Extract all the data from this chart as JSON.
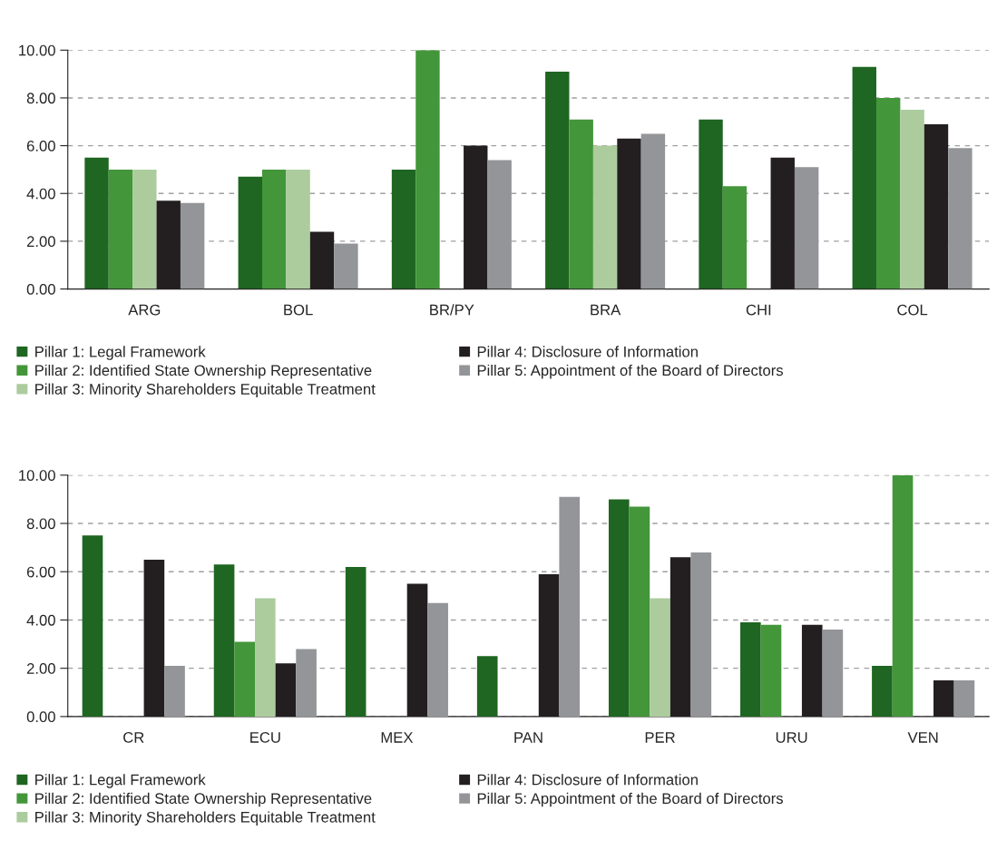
{
  "chart_data": [
    {
      "type": "bar",
      "categories": [
        "ARG",
        "BOL",
        "BR/PY",
        "BRA",
        "CHI",
        "COL"
      ],
      "ylim": [
        0,
        10
      ],
      "yticks": [
        {
          "value": 0,
          "label": "0.00"
        },
        {
          "value": 2,
          "label": "2.00"
        },
        {
          "value": 4,
          "label": "4.00"
        },
        {
          "value": 6,
          "label": "6.00"
        },
        {
          "value": 8,
          "label": "8.00"
        },
        {
          "value": 10,
          "label": "10.00"
        }
      ],
      "grid": "y",
      "legend": "bottom",
      "series": [
        {
          "name": "Pillar 1: Legal Framework",
          "color": "#1e6621",
          "values": [
            5.5,
            4.7,
            5.0,
            9.1,
            7.1,
            9.3
          ]
        },
        {
          "name": "Pillar 2: Identified State Ownership Representative",
          "color": "#43963a",
          "values": [
            5.0,
            5.0,
            10.0,
            7.1,
            4.3,
            8.0
          ]
        },
        {
          "name": "Pillar 3: Minority Shareholders Equitable Treatment",
          "color": "#accc9e",
          "values": [
            5.0,
            5.0,
            null,
            6.0,
            null,
            7.5
          ]
        },
        {
          "name": "Pillar 4: Disclosure of Information",
          "color": "#231f20",
          "values": [
            3.7,
            2.4,
            6.0,
            6.3,
            5.5,
            6.9
          ]
        },
        {
          "name": "Pillar 5: Appointment of the Board of Directors",
          "color": "#939598",
          "values": [
            3.6,
            1.9,
            5.4,
            6.5,
            5.1,
            5.9
          ]
        }
      ]
    },
    {
      "type": "bar",
      "categories": [
        "CR",
        "ECU",
        "MEX",
        "PAN",
        "PER",
        "URU",
        "VEN"
      ],
      "ylim": [
        0,
        10
      ],
      "yticks": [
        {
          "value": 0,
          "label": "0.00"
        },
        {
          "value": 2,
          "label": "2.00"
        },
        {
          "value": 4,
          "label": "4.00"
        },
        {
          "value": 6,
          "label": "6.00"
        },
        {
          "value": 8,
          "label": "8.00"
        },
        {
          "value": 10,
          "label": "10.00"
        }
      ],
      "grid": "y",
      "legend": "bottom",
      "series": [
        {
          "name": "Pillar 1: Legal Framework",
          "color": "#1e6621",
          "values": [
            7.5,
            6.3,
            6.2,
            2.5,
            9.0,
            3.9,
            2.1
          ]
        },
        {
          "name": "Pillar 2: Identified State Ownership Representative",
          "color": "#43963a",
          "values": [
            null,
            3.1,
            null,
            null,
            8.7,
            3.8,
            10.0
          ]
        },
        {
          "name": "Pillar 3: Minority Shareholders Equitable Treatment",
          "color": "#accc9e",
          "values": [
            null,
            4.9,
            null,
            null,
            4.9,
            null,
            null
          ]
        },
        {
          "name": "Pillar 4: Disclosure of Information",
          "color": "#231f20",
          "values": [
            6.5,
            2.2,
            5.5,
            5.9,
            6.6,
            3.8,
            1.5
          ]
        },
        {
          "name": "Pillar 5: Appointment of the Board of Directors",
          "color": "#939598",
          "values": [
            2.1,
            2.8,
            4.7,
            9.1,
            6.8,
            3.6,
            1.5
          ]
        }
      ]
    }
  ]
}
